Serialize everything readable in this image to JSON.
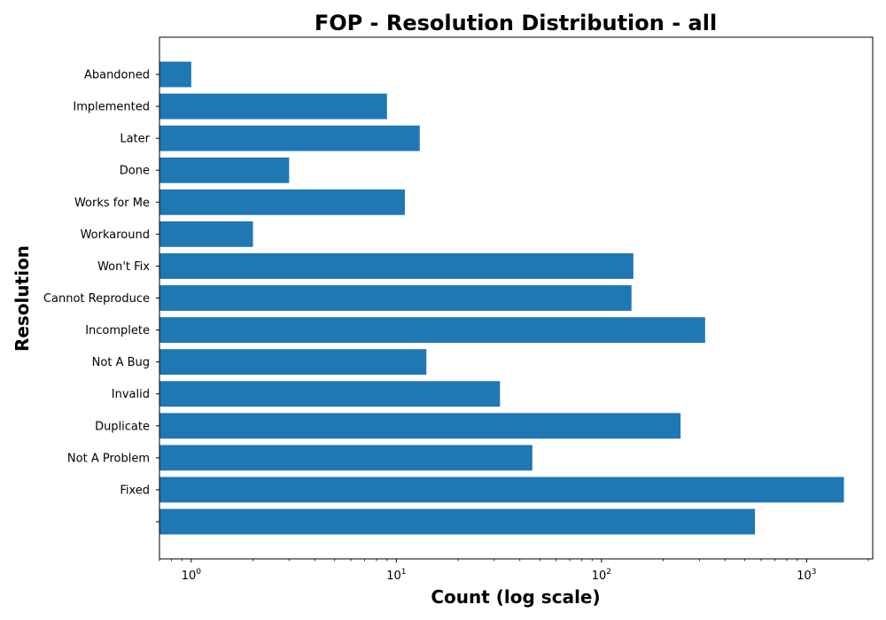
{
  "chart_data": {
    "type": "bar",
    "orientation": "horizontal",
    "title": "FOP - Resolution Distribution - all",
    "xlabel": "Count (log scale)",
    "ylabel": "Resolution",
    "x_scale": "log",
    "xlim": [
      0.7,
      2100
    ],
    "x_ticks": [
      {
        "base": "10",
        "exp": "0",
        "value": 1
      },
      {
        "base": "10",
        "exp": "1",
        "value": 10
      },
      {
        "base": "10",
        "exp": "2",
        "value": 100
      },
      {
        "base": "10",
        "exp": "3",
        "value": 1000
      }
    ],
    "categories": [
      "Abandoned",
      "Implemented",
      "Later",
      "Done",
      "Works for Me",
      "Workaround",
      "Won't Fix",
      "Cannot Reproduce",
      "Incomplete",
      "Not A Bug",
      "Invalid",
      "Duplicate",
      "Not A Problem",
      "Fixed",
      ""
    ],
    "values": [
      1,
      9,
      13,
      3,
      11,
      2,
      143,
      140,
      320,
      14,
      32,
      243,
      46,
      1520,
      560
    ],
    "bar_color": "#1f77b4",
    "grid": false,
    "legend": "none"
  }
}
